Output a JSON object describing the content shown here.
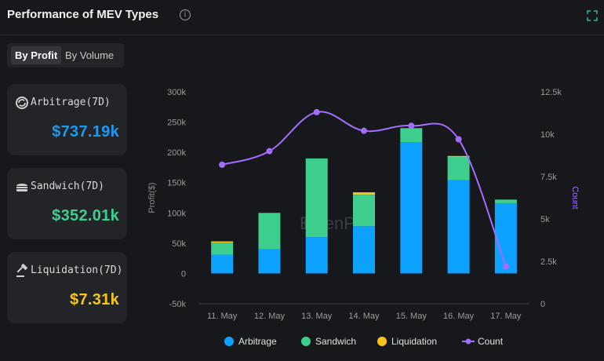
{
  "header": {
    "title": "Performance of MEV Types",
    "info_icon": "info-circle-icon",
    "expand_icon": "expand-icon"
  },
  "tabs": [
    {
      "label": "By Profit",
      "active": true
    },
    {
      "label": "By Volume",
      "active": false
    }
  ],
  "cards": [
    {
      "label": "Arbitrage(7D)",
      "value": "$737.19k",
      "color": "#1a9bf0",
      "icon": "arbitrage-icon"
    },
    {
      "label": "Sandwich(7D)",
      "value": "$352.01k",
      "color": "#3ecf8e",
      "icon": "sandwich-icon"
    },
    {
      "label": "Liquidation(7D)",
      "value": "$7.31k",
      "color": "#f5c518",
      "icon": "gavel-icon"
    }
  ],
  "watermark": "EigenPhi",
  "chart_data": {
    "type": "bar",
    "stacked": true,
    "categories": [
      "11. May",
      "12. May",
      "13. May",
      "14. May",
      "15. May",
      "16. May",
      "17. May"
    ],
    "ylabel": "Profit($)",
    "y2label": "Count",
    "ylim": [
      -50000,
      300000
    ],
    "y2lim": [
      0,
      12500
    ],
    "yticks": [
      "-50k",
      "0",
      "50k",
      "100k",
      "150k",
      "200k",
      "250k",
      "300k"
    ],
    "y2ticks": [
      "0",
      "2.5k",
      "5k",
      "7.5k",
      "10k",
      "12.5k"
    ],
    "series": [
      {
        "name": "Arbitrage",
        "type": "bar",
        "color": "#0da2ff",
        "values": [
          31000,
          40000,
          60000,
          78000,
          217000,
          154000,
          116000
        ]
      },
      {
        "name": "Sandwich",
        "type": "bar",
        "color": "#3ecf8e",
        "values": [
          20000,
          60000,
          130000,
          52000,
          23000,
          39000,
          6000
        ]
      },
      {
        "name": "Liquidation",
        "type": "bar",
        "color": "#fcc419",
        "values": [
          2000,
          0,
          0,
          4000,
          0,
          1000,
          0
        ]
      },
      {
        "name": "Count",
        "type": "line",
        "color": "#a46dff",
        "values": [
          8200,
          9000,
          11300,
          10200,
          10500,
          9700,
          2200
        ]
      }
    ],
    "legend_position": "bottom-center"
  }
}
